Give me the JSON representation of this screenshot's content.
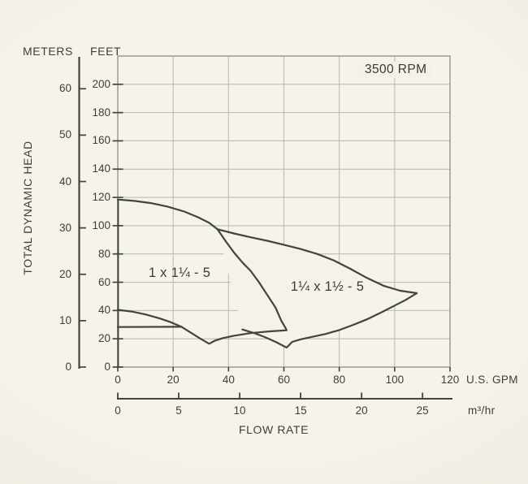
{
  "rpm_label": "3500 RPM",
  "y_axis": {
    "meters_label": "METERS",
    "feet_label": "FEET",
    "axis_title": "TOTAL DYNAMIC HEAD",
    "meters_ticks": [
      0,
      10,
      20,
      30,
      40,
      50,
      60
    ],
    "feet_ticks": [
      0,
      20,
      40,
      60,
      80,
      100,
      120,
      140,
      160,
      180,
      200
    ]
  },
  "x_axis": {
    "gpm_unit": "U.S. GPM",
    "m3hr_unit": "m³/hr",
    "axis_title": "FLOW RATE",
    "gpm_ticks": [
      0,
      20,
      40,
      60,
      80,
      100,
      120
    ],
    "m3hr_ticks": [
      0,
      5,
      10,
      15,
      20,
      25
    ]
  },
  "envelopes": [
    {
      "label": "1 x 1¼ - 5"
    },
    {
      "label": "1¼ x 1½ - 5"
    }
  ],
  "chart_data": {
    "type": "area",
    "title": "3500 RPM",
    "xlabel": "FLOW RATE",
    "ylabel": "TOTAL DYNAMIC HEAD",
    "x_units": [
      "U.S. GPM",
      "m³/hr"
    ],
    "y_units": [
      "FEET",
      "METERS"
    ],
    "xlim_gpm": [
      0,
      120
    ],
    "ylim_feet": [
      0,
      220
    ],
    "grid": true,
    "point_format": "[US_GPM, feet_of_head]",
    "series": [
      {
        "name": "1 x 1¼ - 5",
        "boundaries": {
          "top_curve": [
            [
              0,
              118.5
            ],
            [
              6,
              117.5
            ],
            [
              12,
              116
            ],
            [
              18,
              113.5
            ],
            [
              24,
              110
            ],
            [
              29,
              106
            ],
            [
              33,
              102
            ],
            [
              36,
              97.5
            ]
          ],
          "right_curve": [
            [
              36,
              97.5
            ],
            [
              39,
              89
            ],
            [
              42,
              81
            ],
            [
              45,
              74
            ],
            [
              48,
              68
            ],
            [
              51,
              60
            ],
            [
              54,
              51
            ],
            [
              57,
              42
            ],
            [
              59,
              33
            ],
            [
              60.5,
              28
            ],
            [
              61,
              26
            ]
          ],
          "bottom_edge": [
            [
              61,
              26
            ],
            [
              55,
              25.3
            ],
            [
              48,
              24
            ],
            [
              42,
              22.2
            ],
            [
              38,
              20.5
            ],
            [
              35,
              18.6
            ],
            [
              33,
              16.5
            ]
          ],
          "lower_left_curve": [
            [
              33,
              16.5
            ],
            [
              29.5,
              20.5
            ],
            [
              26,
              24.8
            ],
            [
              23,
              28.5
            ],
            [
              19,
              31.8
            ],
            [
              15,
              34.5
            ],
            [
              10,
              37.2
            ],
            [
              5,
              39.3
            ],
            [
              0,
              40.5
            ]
          ],
          "horizontal_line": [
            [
              0,
              28.3
            ],
            [
              23,
              28.5
            ]
          ]
        }
      },
      {
        "name": "1¼ x 1½ - 5",
        "boundaries": {
          "top_curve": [
            [
              36,
              97.5
            ],
            [
              42,
              94.5
            ],
            [
              48,
              91.8
            ],
            [
              54,
              89.3
            ],
            [
              60,
              86.5
            ],
            [
              66,
              83.5
            ],
            [
              72,
              80
            ],
            [
              78,
              75.5
            ],
            [
              84,
              69.5
            ],
            [
              90,
              63
            ],
            [
              96,
              57.5
            ],
            [
              102,
              54
            ],
            [
              108,
              52.3
            ]
          ],
          "bottom_curve": [
            [
              108,
              52.3
            ],
            [
              104,
              47.5
            ],
            [
              100,
              43.5
            ],
            [
              95,
              38.5
            ],
            [
              90,
              33.8
            ],
            [
              85,
              29.8
            ],
            [
              80,
              26.2
            ],
            [
              75,
              23.4
            ],
            [
              70,
              21.3
            ],
            [
              66,
              19.6
            ],
            [
              63,
              17.8
            ],
            [
              61,
              13.8
            ]
          ],
          "lower_left_edge": [
            [
              61,
              13.8
            ],
            [
              57,
              17.8
            ],
            [
              53,
              21.3
            ],
            [
              49,
              24.2
            ],
            [
              45,
              26.6
            ]
          ]
        }
      }
    ]
  }
}
